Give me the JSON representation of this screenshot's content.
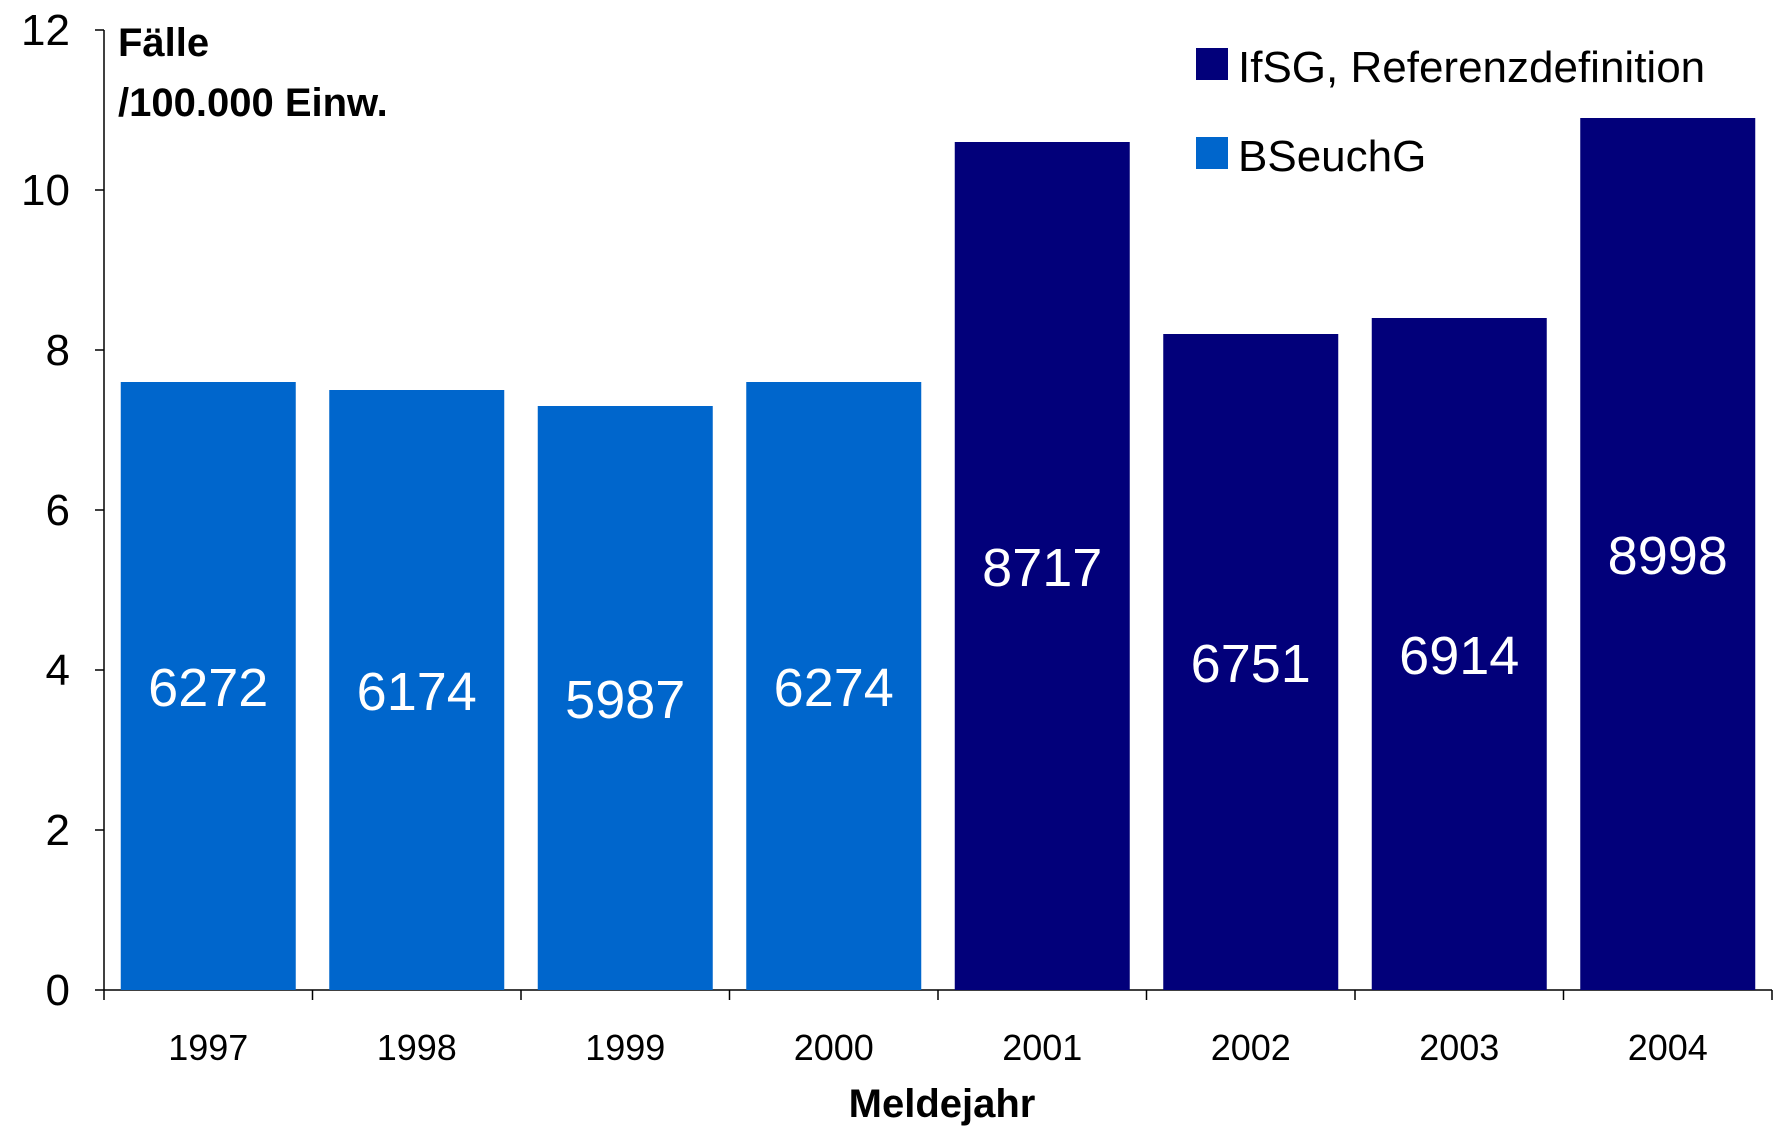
{
  "chart_data": {
    "type": "bar",
    "ylabel_line1": "Fälle",
    "ylabel_line2": "/100.000 Einw.",
    "xlabel": "Meldejahr",
    "ylim": [
      0,
      12
    ],
    "yticks": [
      "0",
      "2",
      "4",
      "6",
      "8",
      "10",
      "12"
    ],
    "categories": [
      "1997",
      "1998",
      "1999",
      "2000",
      "2001",
      "2002",
      "2003",
      "2004"
    ],
    "values": [
      7.6,
      7.5,
      7.3,
      7.6,
      10.6,
      8.2,
      8.4,
      10.9
    ],
    "bar_labels": [
      "6272",
      "6174",
      "5987",
      "6274",
      "8717",
      "6751",
      "6914",
      "8998"
    ],
    "series_of_bar": [
      "BSeuchG",
      "BSeuchG",
      "BSeuchG",
      "BSeuchG",
      "IfSG, Referenzdefinition",
      "IfSG, Referenzdefinition",
      "IfSG, Referenzdefinition",
      "IfSG, Referenzdefinition"
    ],
    "legend": [
      {
        "name": "IfSG, Referenzdefinition",
        "color": "#02007a"
      },
      {
        "name": "BSeuchG",
        "color": "#0066cc"
      }
    ],
    "legend_position": "top-right",
    "grid": false
  }
}
